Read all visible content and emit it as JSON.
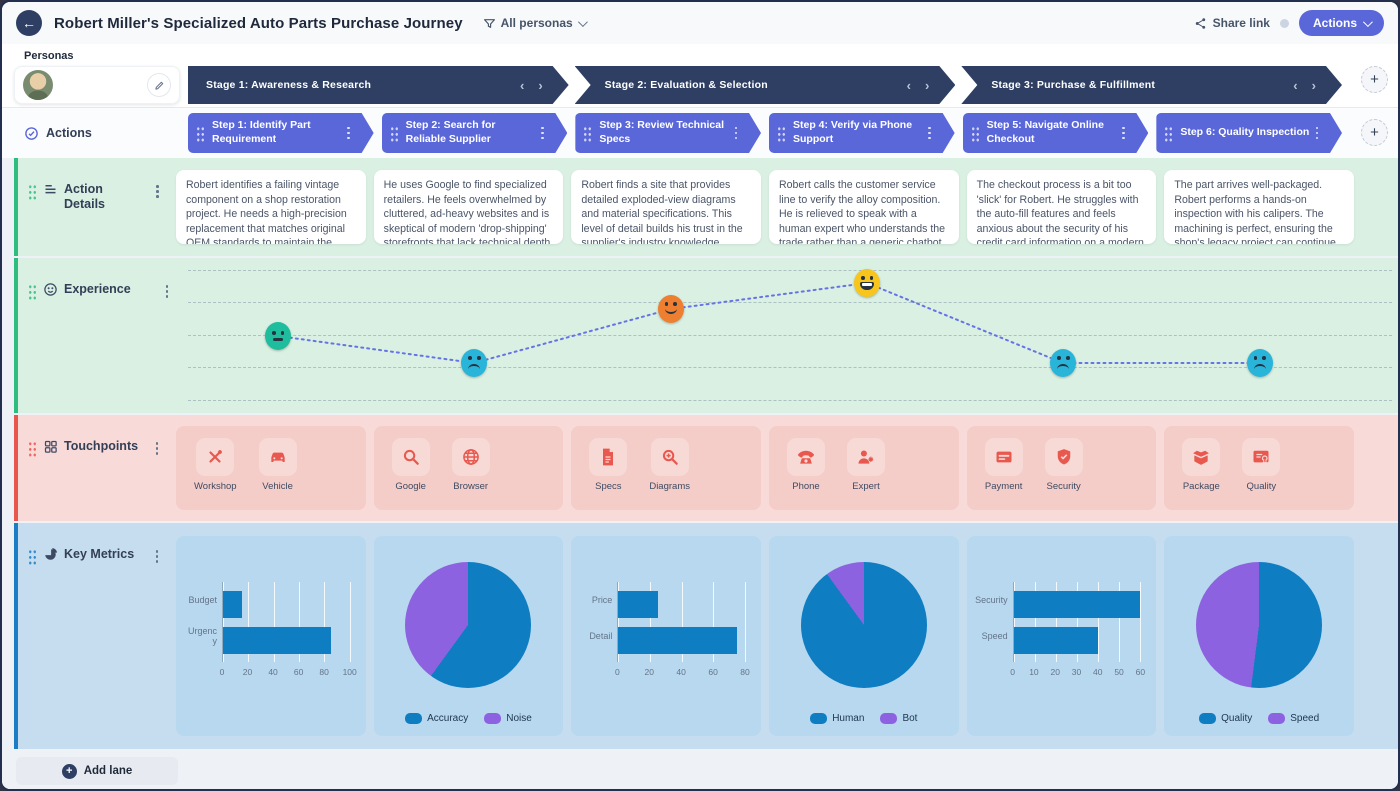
{
  "header": {
    "title": "Robert Miller's Specialized Auto Parts Purchase Journey",
    "filter_label": "All personas",
    "share_label": "Share link",
    "actions_label": "Actions"
  },
  "personas": {
    "section_label": "Personas"
  },
  "stages": [
    {
      "label": "Stage 1: Awareness & Research"
    },
    {
      "label": "Stage 2: Evaluation & Selection"
    },
    {
      "label": "Stage 3: Purchase & Fulfillment"
    }
  ],
  "actions_row": {
    "label": "Actions"
  },
  "steps": [
    {
      "label": "Step 1: Identify Part Requirement"
    },
    {
      "label": "Step 2: Search for Reliable Supplier"
    },
    {
      "label": "Step 3: Review Technical Specs"
    },
    {
      "label": "Step 4: Verify via Phone Support"
    },
    {
      "label": "Step 5: Navigate Online Checkout"
    },
    {
      "label": "Step 6: Quality Inspection"
    }
  ],
  "lanes": {
    "action_details": {
      "label": "Action Details",
      "icon": "list-icon",
      "cells": [
        "Robert identifies a failing vintage component on a shop restoration project. He needs a high-precision replacement that matches original OEM standards to maintain the shop's reputation.",
        "He uses Google to find specialized retailers. He feels overwhelmed by cluttered, ad-heavy websites and is skeptical of modern 'drop-shipping' storefronts that lack technical depth.",
        "Robert finds a site that provides detailed exploded-view diagrams and material specifications. This level of detail builds his trust in the supplier's industry knowledge.",
        "Robert calls the customer service line to verify the alloy composition. He is relieved to speak with a human expert who understands the trade rather than a generic chatbot.",
        "The checkout process is a bit too 'slick' for Robert. He struggles with the auto-fill features and feels anxious about the security of his credit card information on a modern interface.",
        "The part arrives well-packaged. Robert performs a hands-on inspection with his calipers. The machining is perfect, ensuring the shop's legacy project can continue without delay."
      ]
    },
    "experience": {
      "label": "Experience",
      "icon": "smiley-icon",
      "line_color": "#6673e5",
      "points": [
        {
          "col": 0,
          "mood": "neutral",
          "color": "#1dbd9d",
          "y": 78
        },
        {
          "col": 1,
          "mood": "sad",
          "color": "#29b4d9",
          "y": 105
        },
        {
          "col": 2,
          "mood": "smile",
          "color": "#ee7e30",
          "y": 51
        },
        {
          "col": 3,
          "mood": "grin",
          "color": "#f8c51c",
          "y": 25
        },
        {
          "col": 4,
          "mood": "sad",
          "color": "#29b4d9",
          "y": 105
        },
        {
          "col": 5,
          "mood": "sad",
          "color": "#29b4d9",
          "y": 105
        }
      ]
    },
    "touchpoints": {
      "label": "Touchpoints",
      "icon": "grid-icon",
      "cells": [
        [
          {
            "icon": "workshop-icon",
            "label": "Workshop"
          },
          {
            "icon": "vehicle-icon",
            "label": "Vehicle"
          }
        ],
        [
          {
            "icon": "google-icon",
            "label": "Google"
          },
          {
            "icon": "browser-icon",
            "label": "Browser"
          }
        ],
        [
          {
            "icon": "specs-icon",
            "label": "Specs"
          },
          {
            "icon": "diagrams-icon",
            "label": "Diagrams"
          }
        ],
        [
          {
            "icon": "phone-icon",
            "label": "Phone"
          },
          {
            "icon": "expert-icon",
            "label": "Expert"
          }
        ],
        [
          {
            "icon": "payment-icon",
            "label": "Payment"
          },
          {
            "icon": "security-icon",
            "label": "Security"
          }
        ],
        [
          {
            "icon": "package-icon",
            "label": "Package"
          },
          {
            "icon": "quality-icon",
            "label": "Quality"
          }
        ]
      ]
    },
    "key_metrics": {
      "label": "Key Metrics",
      "icon": "pie-icon"
    }
  },
  "chart_data": [
    {
      "type": "bar",
      "orientation": "horizontal",
      "categories": [
        "Budget",
        "Urgency"
      ],
      "values": [
        15,
        85
      ],
      "xlim": [
        0,
        100
      ],
      "ticks": [
        0,
        20,
        40,
        60,
        80,
        100
      ],
      "bar_color": "#0e7dc2",
      "grid": true,
      "legend": false
    },
    {
      "type": "pie",
      "labels": [
        "Accuracy",
        "Noise"
      ],
      "values": [
        60,
        40
      ],
      "colors": [
        "#0e7dc2",
        "#8d62e0"
      ],
      "legend": true,
      "legend_position": "bottom"
    },
    {
      "type": "bar",
      "orientation": "horizontal",
      "categories": [
        "Price",
        "Detail"
      ],
      "values": [
        25,
        75
      ],
      "xlim": [
        0,
        80
      ],
      "ticks": [
        0,
        20,
        40,
        60,
        80
      ],
      "bar_color": "#0e7dc2",
      "grid": true,
      "legend": false
    },
    {
      "type": "pie",
      "labels": [
        "Human",
        "Bot"
      ],
      "values": [
        90,
        10
      ],
      "colors": [
        "#0e7dc2",
        "#8d62e0"
      ],
      "legend": true,
      "legend_position": "bottom"
    },
    {
      "type": "bar",
      "orientation": "horizontal",
      "categories": [
        "Security",
        "Speed"
      ],
      "values": [
        60,
        40
      ],
      "xlim": [
        0,
        60
      ],
      "ticks": [
        0,
        10,
        20,
        30,
        40,
        50,
        60
      ],
      "bar_color": "#0e7dc2",
      "grid": true,
      "legend": false
    },
    {
      "type": "pie",
      "labels": [
        "Quality",
        "Speed"
      ],
      "values": [
        52,
        48
      ],
      "colors": [
        "#0e7dc2",
        "#8d62e0"
      ],
      "legend": true,
      "legend_position": "bottom"
    }
  ],
  "bottom": {
    "add_lane_label": "Add lane"
  },
  "colors": {
    "stage_bar": "#2e3f63",
    "step": "#5a67d8",
    "accent_button": "#5a67d8",
    "lane_green_bg": "#d9f0e2",
    "lane_green_strip": "#2ebd7e",
    "lane_red_bg": "#f8dbd8",
    "lane_red_strip": "#e8564e",
    "touchpoint_icon": "#e8584e",
    "lane_blue_bg": "#c6ddf0",
    "lane_blue_strip": "#1b7ec5",
    "chart_blue": "#0e7dc2",
    "chart_purple": "#8d62e0"
  }
}
